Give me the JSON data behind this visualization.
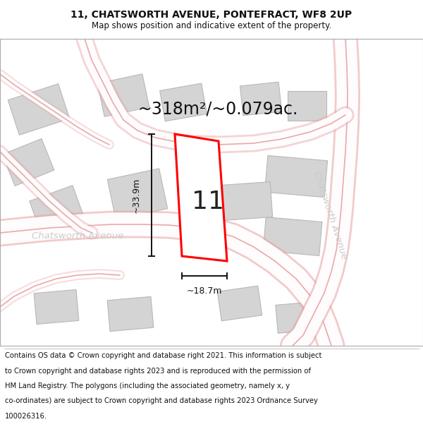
{
  "title": "11, CHATSWORTH AVENUE, PONTEFRACT, WF8 2UP",
  "subtitle": "Map shows position and indicative extent of the property.",
  "area_text": "~318m²/~0.079ac.",
  "width_text": "~18.7m",
  "height_text": "~33.9m",
  "number_text": "11",
  "road_label_left": "Chatsworth Avenue",
  "road_label_right": "Chatsworth Avenue",
  "footer_lines": [
    "Contains OS data © Crown copyright and database right 2021. This information is subject",
    "to Crown copyright and database rights 2023 and is reproduced with the permission of",
    "HM Land Registry. The polygons (including the associated geometry, namely x, y",
    "co-ordinates) are subject to Crown copyright and database rights 2023 Ordnance Survey",
    "100026316."
  ],
  "bg_color": "#ffffff",
  "map_bg": "#f0f0f0",
  "road_stroke": "#e8a0a0",
  "road_fill": "#ffffff",
  "plot_edge": "#ff0000",
  "plot_fill": "#ffffff",
  "build_fill": "#d4d4d4",
  "build_edge": "#b8b8b8",
  "dim_color": "#111111",
  "title_fontsize": 10,
  "subtitle_fontsize": 8.5,
  "footer_fontsize": 7.2,
  "area_fontsize": 17,
  "number_fontsize": 26,
  "dim_fontsize": 9,
  "road_label_fontsize": 9.5
}
